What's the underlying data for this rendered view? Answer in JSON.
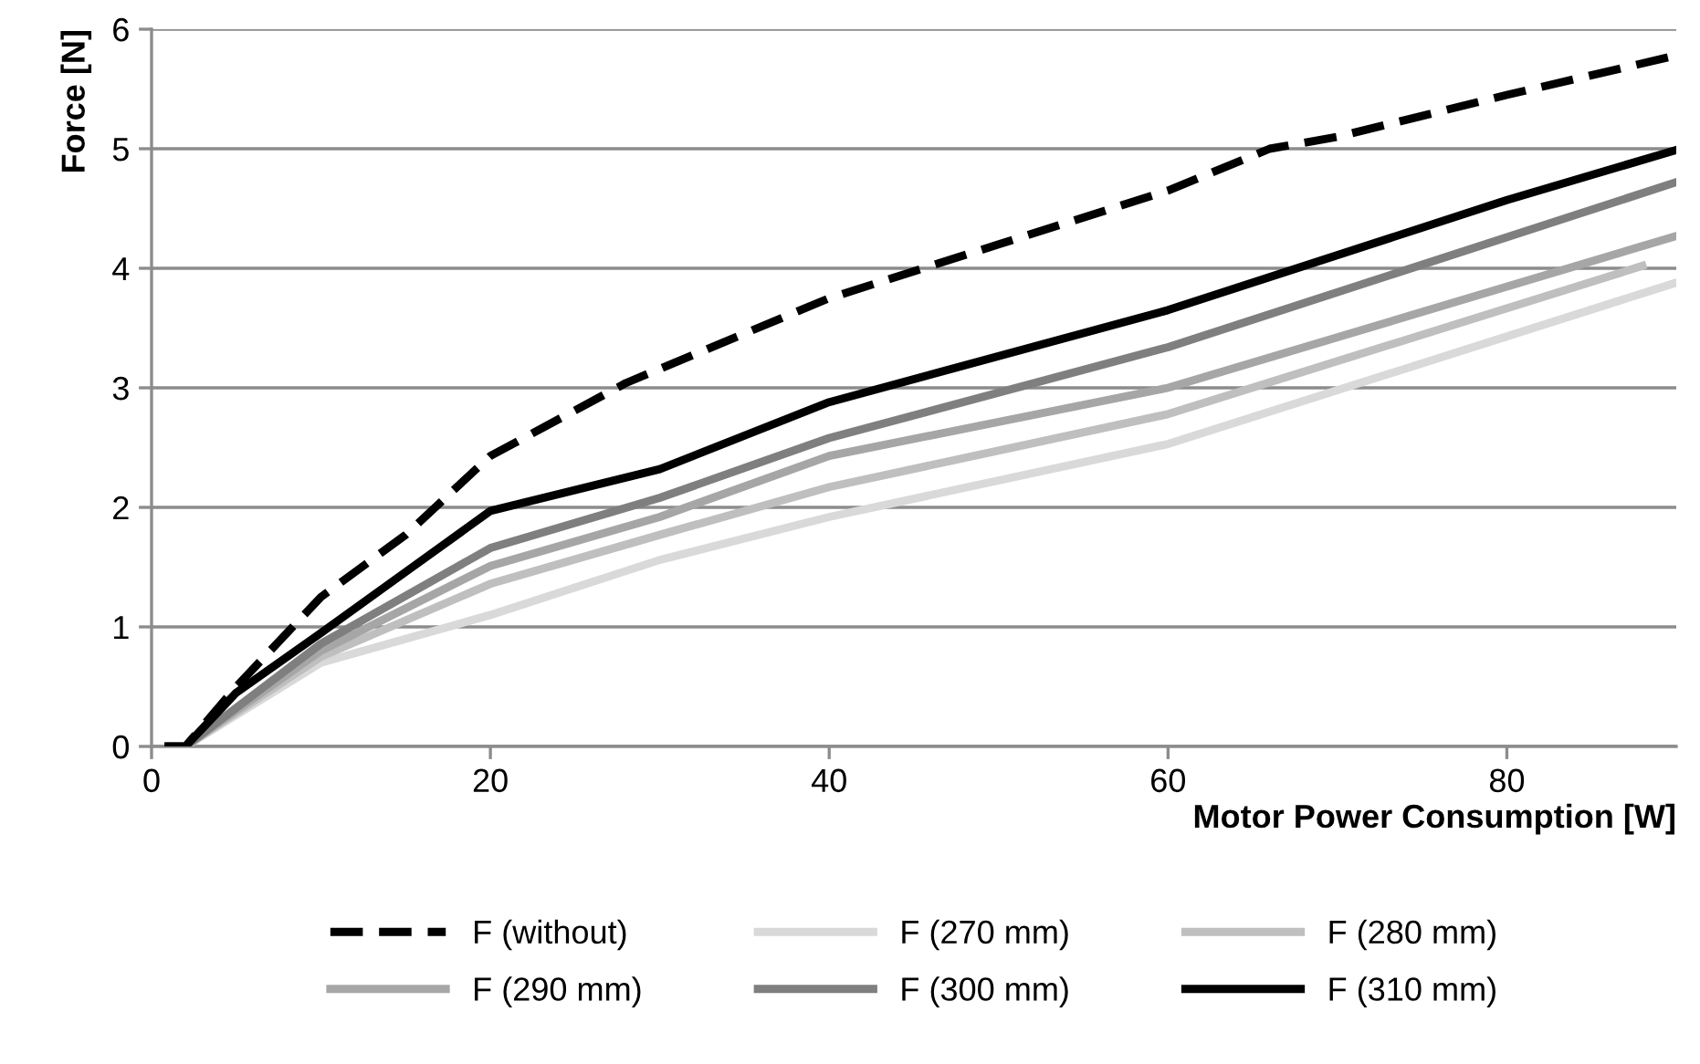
{
  "chart_data": {
    "type": "line",
    "xlabel": "Motor Power Consumption [W]",
    "ylabel": "Force [N]",
    "xlim": [
      0,
      90
    ],
    "ylim": [
      0,
      6
    ],
    "xticks": [
      0,
      20,
      40,
      60,
      80
    ],
    "yticks": [
      0,
      1,
      2,
      3,
      4,
      5,
      6
    ],
    "grid": "y",
    "legend": "bottom",
    "marker": "none",
    "series": [
      {
        "name": "F (without)",
        "color": "#000000",
        "line_style": "dashed",
        "x": [
          1,
          2,
          5,
          10,
          15,
          20,
          28,
          40,
          50,
          60,
          66,
          70,
          80,
          90
        ],
        "values": [
          0,
          0,
          0.5,
          1.25,
          1.77,
          2.43,
          3.04,
          3.75,
          4.2,
          4.65,
          5.0,
          5.1,
          5.45,
          5.78
        ]
      },
      {
        "name": "F (270 mm)",
        "color": "#d9d9d9",
        "line_style": "solid",
        "x": [
          1,
          2,
          10,
          20,
          30,
          40,
          60,
          90
        ],
        "values": [
          0,
          0,
          0.7,
          1.1,
          1.56,
          1.92,
          2.53,
          3.88
        ]
      },
      {
        "name": "F (280 mm)",
        "color": "#bfbfbf",
        "line_style": "solid",
        "x": [
          1,
          2,
          10,
          20,
          30,
          40,
          60,
          88
        ],
        "values": [
          0,
          0,
          0.75,
          1.36,
          1.77,
          2.17,
          2.78,
          4.02
        ]
      },
      {
        "name": "F (290 mm)",
        "color": "#a6a6a6",
        "line_style": "solid",
        "x": [
          1,
          2,
          10,
          20,
          30,
          40,
          60,
          90
        ],
        "values": [
          0,
          0,
          0.8,
          1.51,
          1.92,
          2.43,
          3.0,
          4.27
        ]
      },
      {
        "name": "F (300 mm)",
        "color": "#7f7f7f",
        "line_style": "solid",
        "x": [
          1,
          2,
          10,
          20,
          30,
          40,
          60,
          90
        ],
        "values": [
          0,
          0,
          0.86,
          1.66,
          2.08,
          2.58,
          3.34,
          4.72
        ]
      },
      {
        "name": "F (310 mm)",
        "color": "#000000",
        "line_style": "solid",
        "x": [
          1,
          2,
          5,
          10,
          15,
          20,
          30,
          40,
          60,
          80,
          90
        ],
        "values": [
          0,
          0,
          0.45,
          0.95,
          1.46,
          1.97,
          2.32,
          2.88,
          3.65,
          4.57,
          4.99
        ]
      }
    ]
  }
}
